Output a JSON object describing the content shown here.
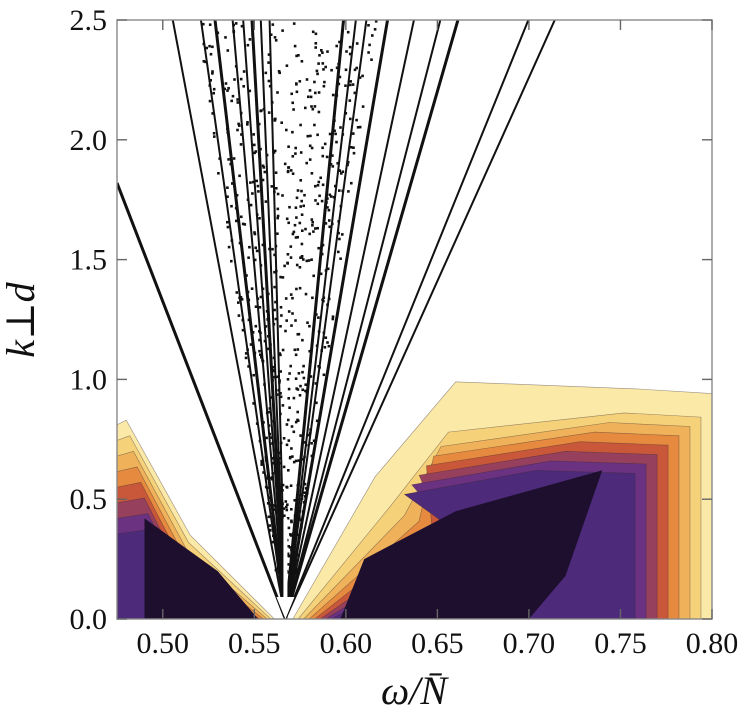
{
  "chart_data": {
    "type": "heatmap",
    "xlabel": "ω/N̄",
    "ylabel": "k⊥d",
    "xlim": [
      0.475,
      0.8
    ],
    "ylim": [
      0.0,
      2.5
    ],
    "x_ticks": [
      "0.50",
      "0.55",
      "0.60",
      "0.65",
      "0.70",
      "0.75",
      "0.80"
    ],
    "x_tick_values": [
      0.5,
      0.55,
      0.6,
      0.65,
      0.7,
      0.75,
      0.8
    ],
    "y_ticks": [
      "0.0",
      "0.5",
      "1.0",
      "1.5",
      "2.0",
      "2.5"
    ],
    "y_tick_values": [
      0.0,
      0.5,
      1.0,
      1.5,
      2.0,
      2.5
    ],
    "colormap": [
      "#ffffff",
      "#fbe9a8",
      "#f5d27a",
      "#efb25a",
      "#e58a3e",
      "#c9583a",
      "#96405e",
      "#6a3280",
      "#4d2a7a",
      "#1e0f2e"
    ],
    "grid": false,
    "arrow": {
      "x": 0.567,
      "y_from": 0.42,
      "y_to": 0.0,
      "color": "#ffffff"
    },
    "focus_point": {
      "x": 0.567,
      "y": 0.0
    },
    "left_region_x": [
      0.475,
      0.505
    ],
    "right_region_x": [
      0.585,
      0.8
    ]
  }
}
